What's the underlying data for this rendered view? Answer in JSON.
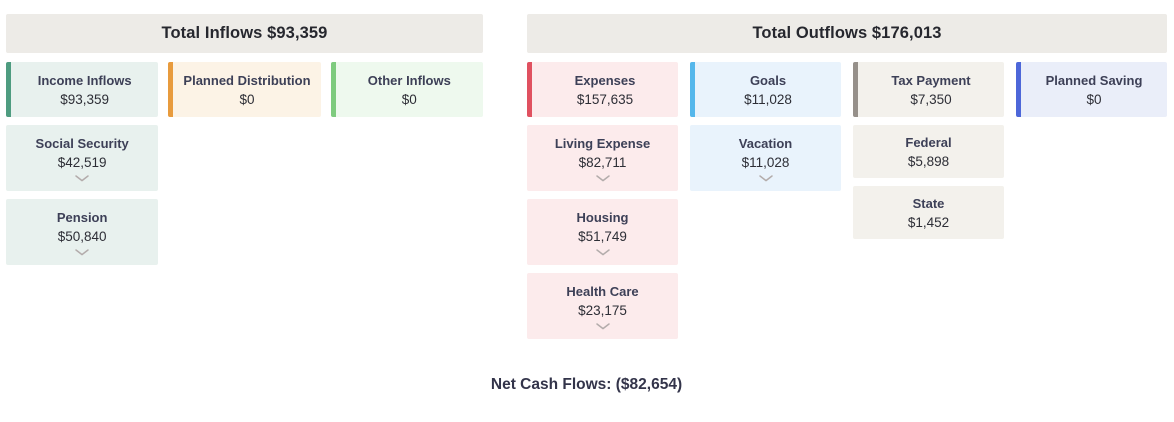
{
  "net_cash_flows": "Net Cash Flows: ($82,654)",
  "colors": {
    "page_bg": "#ffffff",
    "header_bg": "#edebe7",
    "header_text": "#26272e",
    "label_text": "#3d4057",
    "value_text": "#2d2e36",
    "chevron": "#b3acab"
  },
  "sections": [
    {
      "id": "inflows",
      "header": "Total Inflows $93,359",
      "columns": [
        {
          "label": "Income Inflows",
          "value": "$93,359",
          "accent": "#4e9c80",
          "bg": "#e8f1ee",
          "children": [
            {
              "label": "Social Security",
              "value": "$42,519",
              "expandable": true
            },
            {
              "label": "Pension",
              "value": "$50,840",
              "expandable": true
            }
          ]
        },
        {
          "label": "Planned Distribution",
          "value": "$0",
          "accent": "#e89b3d",
          "bg": "#fcf3e6",
          "children": []
        },
        {
          "label": "Other Inflows",
          "value": "$0",
          "accent": "#7ecb7e",
          "bg": "#eef9ee",
          "children": []
        }
      ]
    },
    {
      "id": "outflows",
      "header": "Total Outflows $176,013",
      "columns": [
        {
          "label": "Expenses",
          "value": "$157,635",
          "accent": "#e05160",
          "bg": "#fcebec",
          "children": [
            {
              "label": "Living Expense",
              "value": "$82,711",
              "expandable": true
            },
            {
              "label": "Housing",
              "value": "$51,749",
              "expandable": true
            },
            {
              "label": "Health Care",
              "value": "$23,175",
              "expandable": true
            }
          ]
        },
        {
          "label": "Goals",
          "value": "$11,028",
          "accent": "#55b7eb",
          "bg": "#e9f3fc",
          "children": [
            {
              "label": "Vacation",
              "value": "$11,028",
              "expandable": true
            }
          ]
        },
        {
          "label": "Tax Payment",
          "value": "$7,350",
          "accent": "#96908a",
          "bg": "#f3f1ec",
          "children": [
            {
              "label": "Federal",
              "value": "$5,898",
              "expandable": false
            },
            {
              "label": "State",
              "value": "$1,452",
              "expandable": false
            }
          ]
        },
        {
          "label": "Planned Saving",
          "value": "$0",
          "accent": "#4d67d9",
          "bg": "#eaeef9",
          "children": []
        }
      ]
    }
  ]
}
